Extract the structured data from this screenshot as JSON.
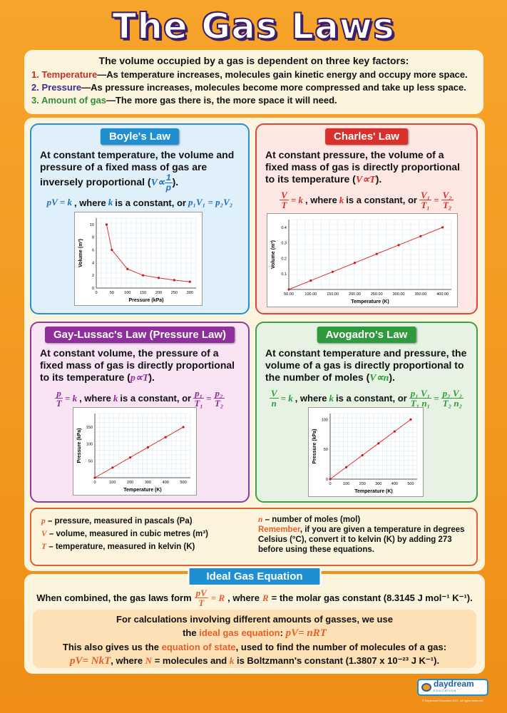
{
  "title": "The Gas Laws",
  "intro": {
    "heading": "The volume occupied by a gas is dependent on three key factors:",
    "items": [
      {
        "num": "1.",
        "term": "Temperature",
        "text": "—As temperature increases, molecules gain kinetic energy and occupy more space.",
        "color": "#c0302b"
      },
      {
        "num": "2.",
        "term": "Pressure",
        "text": "—As pressure increases, molecules become more compressed and take up less space.",
        "color": "#3a2d8f"
      },
      {
        "num": "3.",
        "term": "Amount of gas",
        "text": "—The more gas there is, the more space it will need.",
        "color": "#2f8f3a"
      }
    ]
  },
  "boyle": {
    "label": "Boyle's Law",
    "color": "#1f8fd1",
    "desc": "At constant temperature, the volume and pressure of a fixed mass of gas are inversely proportional (",
    "sym": "V∝",
    "num": "1",
    "den": "p",
    "close": ").",
    "f1": "pV = k",
    "f2": ", where",
    "k": "k",
    "f3": "is a constant, or",
    "f4": "p₁V₁ = p₂V₂"
  },
  "charles": {
    "label": "Charles' Law",
    "color": "#d9302b",
    "desc": "At constant pressure, the volume of a fixed mass of gas is directly proportional to its temperature (",
    "sym": "V∝T",
    "close": ").",
    "n1": "V",
    "d1": "T",
    "eq": "= k",
    "f2": ", where",
    "k": "k",
    "f3": "is a constant, or",
    "n2": "V₁",
    "d2": "T₁",
    "n3": "V₂",
    "d3": "T₂"
  },
  "gay": {
    "label": "Gay-Lussac's Law (Pressure Law)",
    "color": "#8e2f9b",
    "desc": "At constant volume, the pressure of a fixed mass of gas is directly proportional to its temperature (",
    "sym": "p∝T",
    "close": ").",
    "n1": "p",
    "d1": "T",
    "eq": "= k",
    "f2": ", where",
    "k": "k",
    "f3": "is a constant, or",
    "n2": "p₁",
    "d2": "T₁",
    "n3": "p₂",
    "d3": "T₂"
  },
  "avogadro": {
    "label": "Avogadro's Law",
    "color": "#2f9a3d",
    "desc": "At constant temperature and pressure, the volume of a gas is directly proportional to the number of moles (",
    "sym": "V∝n",
    "close": ").",
    "n1": "V",
    "d1": "n",
    "eq": "= k",
    "f2": ", where",
    "k": "k",
    "f3": "is a constant, or",
    "n2": "p₁ V₁",
    "d2": "T₁ n₁",
    "n3": "p₂ V₂",
    "d3": "T₂ n₂"
  },
  "defs": {
    "p_sym": "p",
    "p": " – pressure, measured in pascals (Pa)",
    "v_sym": "V",
    "v": " – volume, measured in cubic metres (m³)",
    "t_sym": "T",
    "t": " – temperature, measured in kelvin (K)",
    "n_sym": "n",
    "n": " – number of moles (mol)",
    "remember": "Remember",
    "rem_text": ", if you are given a temperature in degrees Celsius (°C), convert it to kelvin (K) by adding 273 before using these equations."
  },
  "ideal": {
    "label": "Ideal Gas Equation",
    "l1a": "When combined, the gas laws form",
    "fn": "pV",
    "fd": "T",
    "feq": "= R",
    "l1b": ", where",
    "R": "R",
    "l1c": "= the molar gas constant (8.3145 J mol⁻¹ K⁻¹).",
    "l2": "For calculations involving different amounts of gasses, we use",
    "l3a": "the",
    "l3b": "ideal gas equation",
    "l3c": ":",
    "eq1": "pV= nRT",
    "l4a": "This also gives us the",
    "l4b": "equation of state",
    "l4c": ", used to find the number of molecules of a gas:",
    "eq2": "pV= NkT",
    "l5a": ", where",
    "N": "N",
    "l5b": "= molecules and",
    "k": "k",
    "l5c": "is Boltzmann's constant (1.3807 x 10⁻²³ J K⁻¹)."
  },
  "logo": {
    "text": "daydream",
    "sub": "EDUCATION",
    "copyright": "© Daydream Education 2017. All rights reserved."
  },
  "chart_data": [
    {
      "type": "line",
      "xlabel": "Pressure (kPa)",
      "ylabel": "Volume (m³)",
      "x": [
        33,
        50,
        100,
        150,
        200,
        250,
        300
      ],
      "y": [
        10,
        6,
        3,
        2,
        1.6,
        1.25,
        1
      ],
      "xlim": [
        0,
        320
      ],
      "ylim": [
        0,
        11
      ],
      "xticks": [
        "0",
        "50",
        "100",
        "150",
        "200",
        "250",
        "300"
      ],
      "xtickv": [
        0,
        50,
        100,
        150,
        200,
        250,
        300
      ],
      "yticks": [
        "0",
        "2",
        "4",
        "6",
        "8",
        "10"
      ],
      "ytickv": [
        0,
        2,
        4,
        6,
        8,
        10
      ],
      "grid": true,
      "color": "#e0302a"
    },
    {
      "type": "line",
      "xlabel": "Temperature (K)",
      "ylabel": "Volume (m³)",
      "x": [
        50,
        100,
        150,
        200,
        250,
        300,
        350,
        400
      ],
      "y": [
        0,
        0.057,
        0.114,
        0.171,
        0.229,
        0.286,
        0.343,
        0.4
      ],
      "xlim": [
        50,
        420
      ],
      "ylim": [
        0,
        0.45
      ],
      "xticks": [
        "50.00",
        "100.00",
        "150.00",
        "200.00",
        "250.00",
        "300.00",
        "350.00",
        "400.00"
      ],
      "xtickv": [
        50,
        100,
        150,
        200,
        250,
        300,
        350,
        400
      ],
      "yticks": [
        "0.1",
        "0.2",
        "0.3",
        "0.4"
      ],
      "ytickv": [
        0.1,
        0.2,
        0.3,
        0.4
      ],
      "grid": true,
      "color": "#e0302a"
    },
    {
      "type": "line",
      "xlabel": "Temperature (K)",
      "ylabel": "Pressure (kPa)",
      "x": [
        0,
        100,
        200,
        300,
        400,
        500
      ],
      "y": [
        0,
        30,
        60,
        90,
        120,
        150
      ],
      "xlim": [
        0,
        540
      ],
      "ylim": [
        0,
        190
      ],
      "xticks": [
        "0",
        "100",
        "200",
        "300",
        "400",
        "500"
      ],
      "xtickv": [
        0,
        100,
        200,
        300,
        400,
        500
      ],
      "yticks": [
        "50",
        "100",
        "150"
      ],
      "ytickv": [
        50,
        100,
        150
      ],
      "grid": true,
      "color": "#e0302a"
    },
    {
      "type": "line",
      "xlabel": "Temperature (K)",
      "ylabel": "Pressure (kPa)",
      "x": [
        0,
        100,
        200,
        300,
        400,
        500
      ],
      "y": [
        0,
        20,
        40,
        60,
        80,
        100
      ],
      "xlim": [
        0,
        540
      ],
      "ylim": [
        0,
        110
      ],
      "xticks": [
        "0",
        "100",
        "200",
        "300",
        "400",
        "500"
      ],
      "xtickv": [
        0,
        100,
        200,
        300,
        400,
        500
      ],
      "yticks": [
        "0",
        "50",
        "100"
      ],
      "ytickv": [
        0,
        50,
        100
      ],
      "grid": true,
      "color": "#e0302a"
    }
  ]
}
